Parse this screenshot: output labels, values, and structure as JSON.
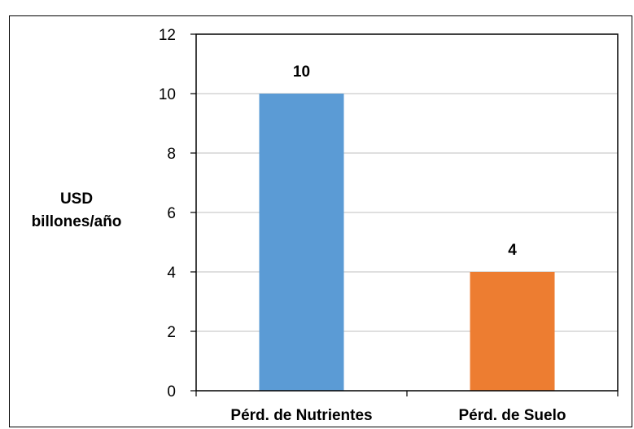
{
  "chart_data": {
    "type": "bar",
    "categories": [
      "Pérd. de Nutrientes",
      "Pérd. de Suelo"
    ],
    "values": [
      10,
      4
    ],
    "data_labels": [
      "10",
      "4"
    ],
    "colors": [
      "#5b9bd5",
      "#ed7d31"
    ],
    "ylabel_lines": [
      "USD",
      "billones/año"
    ],
    "ylim": [
      0,
      12
    ],
    "yticks": [
      "0",
      "2",
      "4",
      "6",
      "8",
      "10",
      "12"
    ],
    "grid": true,
    "legend": "none"
  }
}
